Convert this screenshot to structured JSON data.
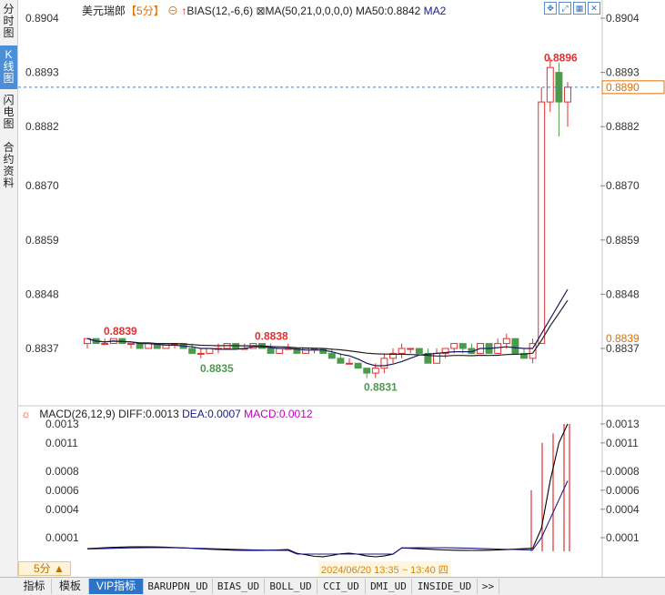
{
  "sidebar": {
    "tabs": [
      {
        "label": "分时图",
        "active": false
      },
      {
        "label": "K线图",
        "active": true
      },
      {
        "label": "闪电图",
        "active": false
      },
      {
        "label": "合约资料",
        "active": false
      }
    ]
  },
  "main_chart": {
    "symbol": "美元瑞郎",
    "period": "【5分】",
    "bias_label": "BIAS(12,-6,6)",
    "ma_label": "MA(50,21,0,0,0,0)",
    "ma50_label": "MA50:0.8842",
    "ma2_label": "MA2",
    "price_axis": [
      "0.8904",
      "0.8893",
      "0.8882",
      "0.8870",
      "0.8859",
      "0.8848",
      "0.8837"
    ],
    "current_price": "0.8890",
    "right_marker": "0.8839",
    "annotations": {
      "high_left": "0.8839",
      "mid_high": "0.8838",
      "low_left": "0.8835",
      "low_mid": "0.8831",
      "high_right": "0.8896"
    }
  },
  "macd_panel": {
    "title": "MACD(26,12,9)",
    "diff": "DIFF:0.0013",
    "dea": "DEA:0.0007",
    "macd": "MACD:0.0012",
    "axis": [
      "0.0013",
      "0.0011",
      "0.0008",
      "0.0006",
      "0.0004",
      "0.0001"
    ]
  },
  "footer": {
    "period_button": "5分 ▲",
    "time_range": "2024/06/20 13:35 ~ 13:40 四",
    "tabs": [
      "指标",
      "模板",
      "VIP指标",
      "BARUPDN_UD",
      "BIAS_UD",
      "BOLL_UD",
      "CCI_UD",
      "DMI_UD",
      "INSIDE_UD",
      ">>"
    ]
  },
  "colors": {
    "up": "#e0302f",
    "down": "#4c9a4c",
    "ma_line": "#1a1a5e",
    "dashed_price": "#3b7fd0",
    "current_price": "#e07000",
    "diff_line": "#000000",
    "dea_line": "#1a1a8a"
  },
  "chart_data": {
    "type": "candlestick",
    "title": "美元瑞郎 5分",
    "y_ticks": [
      0.8837,
      0.8848,
      0.8859,
      0.887,
      0.8882,
      0.8893,
      0.8904
    ],
    "ylim": [
      0.8829,
      0.8906
    ],
    "candles_ohlc": [
      [
        0.8838,
        0.8839,
        0.8837,
        0.8839
      ],
      [
        0.8839,
        0.8839,
        0.8838,
        0.8838
      ],
      [
        0.8838,
        0.8839,
        0.8838,
        0.8838
      ],
      [
        0.8838,
        0.8839,
        0.8838,
        0.8839
      ],
      [
        0.8839,
        0.8839,
        0.8838,
        0.8838
      ],
      [
        0.8838,
        0.8838,
        0.8837,
        0.8838
      ],
      [
        0.8838,
        0.8838,
        0.8837,
        0.8837
      ],
      [
        0.8837,
        0.8838,
        0.8837,
        0.8838
      ],
      [
        0.8838,
        0.8838,
        0.8837,
        0.8837
      ],
      [
        0.8837,
        0.8838,
        0.8837,
        0.8838
      ],
      [
        0.8838,
        0.8838,
        0.8837,
        0.8838
      ],
      [
        0.8838,
        0.8838,
        0.8837,
        0.8837
      ],
      [
        0.8837,
        0.8838,
        0.8836,
        0.8836
      ],
      [
        0.8836,
        0.8837,
        0.8835,
        0.8836
      ],
      [
        0.8836,
        0.8837,
        0.8836,
        0.8837
      ],
      [
        0.8837,
        0.8838,
        0.8836,
        0.8837
      ],
      [
        0.8837,
        0.8838,
        0.8837,
        0.8838
      ],
      [
        0.8838,
        0.8838,
        0.8837,
        0.8837
      ],
      [
        0.8837,
        0.8838,
        0.8837,
        0.8837
      ],
      [
        0.8837,
        0.8838,
        0.8837,
        0.8838
      ],
      [
        0.8838,
        0.8838,
        0.8837,
        0.8837
      ],
      [
        0.8837,
        0.8838,
        0.8836,
        0.8836
      ],
      [
        0.8836,
        0.8837,
        0.8836,
        0.8837
      ],
      [
        0.8837,
        0.8838,
        0.8837,
        0.8837
      ],
      [
        0.8837,
        0.8837,
        0.8836,
        0.8836
      ],
      [
        0.8836,
        0.8837,
        0.8836,
        0.8837
      ],
      [
        0.8837,
        0.8837,
        0.8836,
        0.8837
      ],
      [
        0.8837,
        0.8837,
        0.8836,
        0.8836
      ],
      [
        0.8836,
        0.8837,
        0.8835,
        0.8835
      ],
      [
        0.8835,
        0.8836,
        0.8834,
        0.8834
      ],
      [
        0.8834,
        0.8835,
        0.8834,
        0.8834
      ],
      [
        0.8834,
        0.8834,
        0.8833,
        0.8833
      ],
      [
        0.8833,
        0.8833,
        0.8831,
        0.8832
      ],
      [
        0.8832,
        0.8834,
        0.8831,
        0.8833
      ],
      [
        0.8833,
        0.8836,
        0.8832,
        0.8835
      ],
      [
        0.8835,
        0.8837,
        0.8834,
        0.8836
      ],
      [
        0.8836,
        0.8838,
        0.8835,
        0.8837
      ],
      [
        0.8837,
        0.8837,
        0.8836,
        0.8837
      ],
      [
        0.8837,
        0.8837,
        0.8836,
        0.8836
      ],
      [
        0.8836,
        0.8837,
        0.8834,
        0.8834
      ],
      [
        0.8834,
        0.8837,
        0.8834,
        0.8836
      ],
      [
        0.8836,
        0.8837,
        0.8835,
        0.8837
      ],
      [
        0.8837,
        0.8838,
        0.8836,
        0.8838
      ],
      [
        0.8838,
        0.8838,
        0.8836,
        0.8837
      ],
      [
        0.8837,
        0.8838,
        0.8836,
        0.8836
      ],
      [
        0.8836,
        0.8838,
        0.8836,
        0.8838
      ],
      [
        0.8838,
        0.8838,
        0.8836,
        0.8836
      ],
      [
        0.8836,
        0.8839,
        0.8836,
        0.8838
      ],
      [
        0.8838,
        0.884,
        0.8837,
        0.8839
      ],
      [
        0.8839,
        0.8839,
        0.8836,
        0.8836
      ],
      [
        0.8836,
        0.8837,
        0.8835,
        0.8835
      ],
      [
        0.8835,
        0.8839,
        0.8834,
        0.8838
      ],
      [
        0.8838,
        0.889,
        0.8838,
        0.8887
      ],
      [
        0.8887,
        0.8896,
        0.8885,
        0.8894
      ],
      [
        0.8893,
        0.8895,
        0.888,
        0.8887
      ],
      [
        0.8887,
        0.8891,
        0.8882,
        0.889
      ]
    ],
    "series": [
      {
        "name": "MA50",
        "values_note": "flat near 0.8839 then rising",
        "last": 0.8842
      },
      {
        "name": "MA2"
      }
    ],
    "macd": {
      "diff_last": 0.0013,
      "dea_last": 0.0007,
      "macd_last": 0.0012,
      "y_ticks": [
        0.0001,
        0.0004,
        0.0006,
        0.0008,
        0.0011,
        0.0013
      ]
    }
  }
}
